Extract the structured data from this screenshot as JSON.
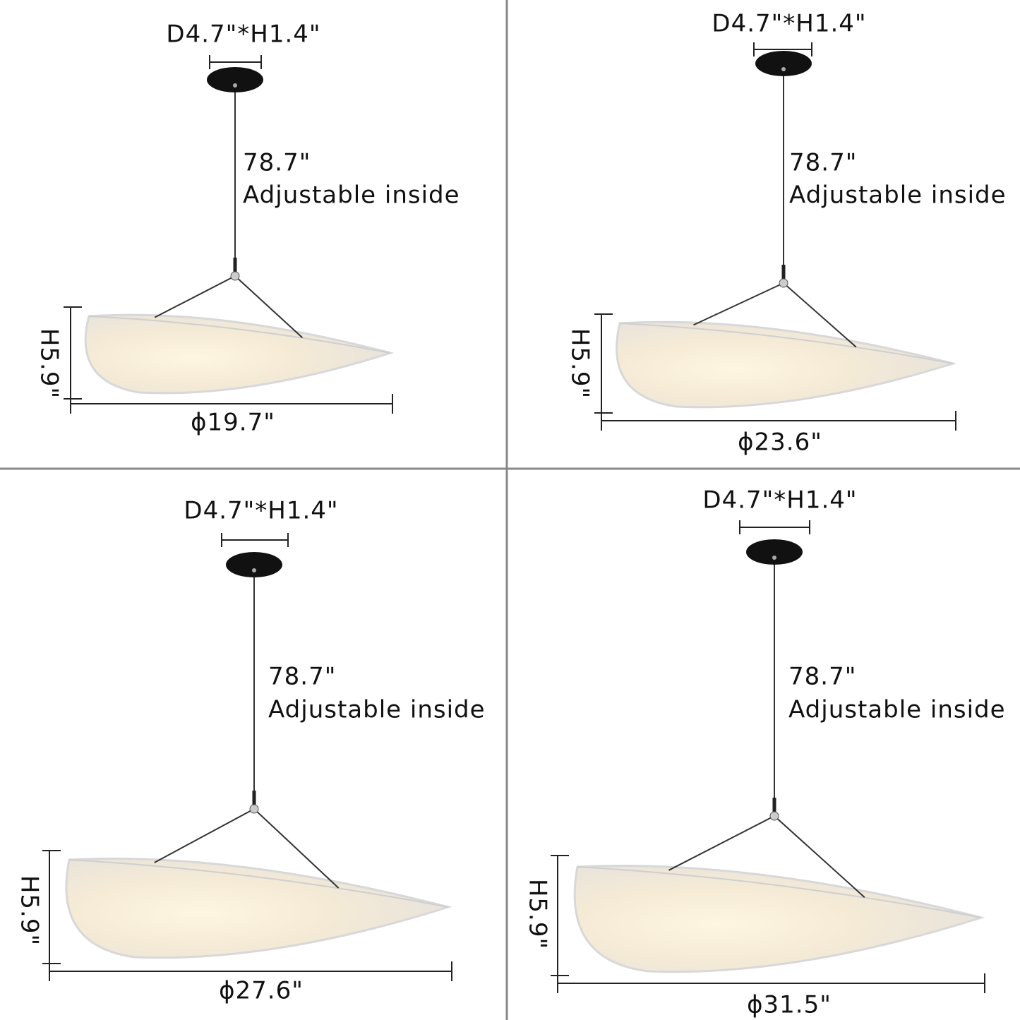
{
  "panels": [
    {
      "canopy": "D4.7\"*H1.4\"",
      "cord_length": "78.7\"",
      "cord_note": "Adjustable inside",
      "height": "H5.9\"",
      "diameter": "ϕ19.7\""
    },
    {
      "canopy": "D4.7\"*H1.4\"",
      "cord_length": "78.7\"",
      "cord_note": "Adjustable inside",
      "height": "H5.9\"",
      "diameter": "ϕ23.6\""
    },
    {
      "canopy": "D4.7\"*H1.4\"",
      "cord_length": "78.7\"",
      "cord_note": "Adjustable inside",
      "height": "H5.9\"",
      "diameter": "ϕ27.6\""
    },
    {
      "canopy": "D4.7\"*H1.4\"",
      "cord_length": "78.7\"",
      "cord_note": "Adjustable inside",
      "height": "H5.9\"",
      "diameter": "ϕ31.5\""
    }
  ]
}
